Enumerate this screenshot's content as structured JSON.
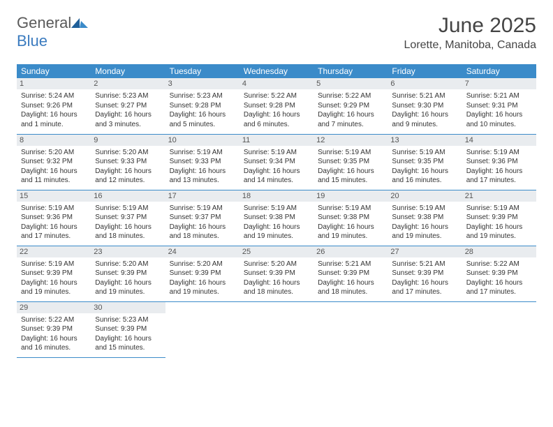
{
  "logo": {
    "text1": "General",
    "text2": "Blue"
  },
  "title": "June 2025",
  "location": "Lorette, Manitoba, Canada",
  "weekdays": [
    "Sunday",
    "Monday",
    "Tuesday",
    "Wednesday",
    "Thursday",
    "Friday",
    "Saturday"
  ],
  "colors": {
    "header_bg": "#3b8bc9",
    "header_text": "#ffffff",
    "daynum_bg": "#e9ecef",
    "border": "#3b8bc9",
    "logo_gray": "#5a5a5a",
    "logo_blue": "#3b7bbf"
  },
  "days": [
    {
      "n": "1",
      "sr": "5:24 AM",
      "ss": "9:26 PM",
      "dl": "16 hours and 1 minute."
    },
    {
      "n": "2",
      "sr": "5:23 AM",
      "ss": "9:27 PM",
      "dl": "16 hours and 3 minutes."
    },
    {
      "n": "3",
      "sr": "5:23 AM",
      "ss": "9:28 PM",
      "dl": "16 hours and 5 minutes."
    },
    {
      "n": "4",
      "sr": "5:22 AM",
      "ss": "9:28 PM",
      "dl": "16 hours and 6 minutes."
    },
    {
      "n": "5",
      "sr": "5:22 AM",
      "ss": "9:29 PM",
      "dl": "16 hours and 7 minutes."
    },
    {
      "n": "6",
      "sr": "5:21 AM",
      "ss": "9:30 PM",
      "dl": "16 hours and 9 minutes."
    },
    {
      "n": "7",
      "sr": "5:21 AM",
      "ss": "9:31 PM",
      "dl": "16 hours and 10 minutes."
    },
    {
      "n": "8",
      "sr": "5:20 AM",
      "ss": "9:32 PM",
      "dl": "16 hours and 11 minutes."
    },
    {
      "n": "9",
      "sr": "5:20 AM",
      "ss": "9:33 PM",
      "dl": "16 hours and 12 minutes."
    },
    {
      "n": "10",
      "sr": "5:19 AM",
      "ss": "9:33 PM",
      "dl": "16 hours and 13 minutes."
    },
    {
      "n": "11",
      "sr": "5:19 AM",
      "ss": "9:34 PM",
      "dl": "16 hours and 14 minutes."
    },
    {
      "n": "12",
      "sr": "5:19 AM",
      "ss": "9:35 PM",
      "dl": "16 hours and 15 minutes."
    },
    {
      "n": "13",
      "sr": "5:19 AM",
      "ss": "9:35 PM",
      "dl": "16 hours and 16 minutes."
    },
    {
      "n": "14",
      "sr": "5:19 AM",
      "ss": "9:36 PM",
      "dl": "16 hours and 17 minutes."
    },
    {
      "n": "15",
      "sr": "5:19 AM",
      "ss": "9:36 PM",
      "dl": "16 hours and 17 minutes."
    },
    {
      "n": "16",
      "sr": "5:19 AM",
      "ss": "9:37 PM",
      "dl": "16 hours and 18 minutes."
    },
    {
      "n": "17",
      "sr": "5:19 AM",
      "ss": "9:37 PM",
      "dl": "16 hours and 18 minutes."
    },
    {
      "n": "18",
      "sr": "5:19 AM",
      "ss": "9:38 PM",
      "dl": "16 hours and 19 minutes."
    },
    {
      "n": "19",
      "sr": "5:19 AM",
      "ss": "9:38 PM",
      "dl": "16 hours and 19 minutes."
    },
    {
      "n": "20",
      "sr": "5:19 AM",
      "ss": "9:38 PM",
      "dl": "16 hours and 19 minutes."
    },
    {
      "n": "21",
      "sr": "5:19 AM",
      "ss": "9:39 PM",
      "dl": "16 hours and 19 minutes."
    },
    {
      "n": "22",
      "sr": "5:19 AM",
      "ss": "9:39 PM",
      "dl": "16 hours and 19 minutes."
    },
    {
      "n": "23",
      "sr": "5:20 AM",
      "ss": "9:39 PM",
      "dl": "16 hours and 19 minutes."
    },
    {
      "n": "24",
      "sr": "5:20 AM",
      "ss": "9:39 PM",
      "dl": "16 hours and 19 minutes."
    },
    {
      "n": "25",
      "sr": "5:20 AM",
      "ss": "9:39 PM",
      "dl": "16 hours and 18 minutes."
    },
    {
      "n": "26",
      "sr": "5:21 AM",
      "ss": "9:39 PM",
      "dl": "16 hours and 18 minutes."
    },
    {
      "n": "27",
      "sr": "5:21 AM",
      "ss": "9:39 PM",
      "dl": "16 hours and 17 minutes."
    },
    {
      "n": "28",
      "sr": "5:22 AM",
      "ss": "9:39 PM",
      "dl": "16 hours and 17 minutes."
    },
    {
      "n": "29",
      "sr": "5:22 AM",
      "ss": "9:39 PM",
      "dl": "16 hours and 16 minutes."
    },
    {
      "n": "30",
      "sr": "5:23 AM",
      "ss": "9:39 PM",
      "dl": "16 hours and 15 minutes."
    }
  ]
}
